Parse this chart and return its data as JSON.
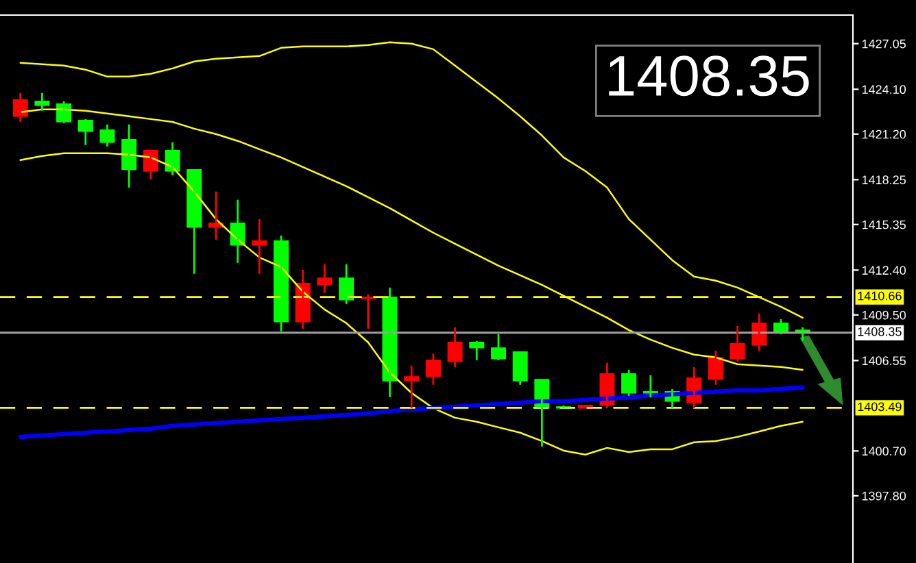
{
  "chart_data": {
    "type": "candlestick",
    "categories": [
      null,
      null,
      null,
      null,
      null,
      null,
      null,
      null,
      null,
      null,
      null,
      null,
      null,
      null,
      null,
      null,
      null,
      null,
      null,
      null,
      null,
      null,
      null,
      null,
      null,
      null,
      null,
      null,
      null,
      null,
      null,
      null,
      null,
      null,
      null,
      null,
      null
    ],
    "ohlc": [
      [
        1422.35,
        1423.86,
        1422.0,
        1423.42
      ],
      [
        1423.33,
        1423.86,
        1422.71,
        1423.06
      ],
      [
        1423.15,
        1423.33,
        1421.91,
        1422.0
      ],
      [
        1422.09,
        1422.17,
        1420.49,
        1421.38
      ],
      [
        1421.47,
        1421.82,
        1420.4,
        1420.67
      ],
      [
        1420.85,
        1421.82,
        1417.74,
        1418.9
      ],
      [
        1418.81,
        1420.14,
        1418.27,
        1420.14
      ],
      [
        1420.14,
        1420.67,
        1418.54,
        1418.81
      ],
      [
        1418.9,
        1418.9,
        1412.16,
        1415.17
      ],
      [
        1415.17,
        1417.48,
        1414.37,
        1415.44
      ],
      [
        1415.44,
        1416.95,
        1412.87,
        1414.02
      ],
      [
        1414.02,
        1415.7,
        1412.16,
        1414.29
      ],
      [
        1414.29,
        1414.64,
        1408.44,
        1409.06
      ],
      [
        1409.06,
        1412.42,
        1408.61,
        1411.54
      ],
      [
        1411.45,
        1412.78,
        1410.92,
        1411.89
      ],
      [
        1411.89,
        1412.78,
        1410.21,
        1410.47
      ],
      [
        1410.56,
        1410.83,
        1408.61,
        1410.65
      ],
      [
        1410.65,
        1411.27,
        1404.18,
        1405.24
      ],
      [
        1405.24,
        1406.22,
        1403.47,
        1405.51
      ],
      [
        1405.51,
        1407.0,
        1404.98,
        1406.57
      ],
      [
        1406.49,
        1408.7,
        1406.13,
        1407.73
      ],
      [
        1407.73,
        1407.82,
        1406.57,
        1407.37
      ],
      [
        1407.37,
        1408.26,
        1406.57,
        1406.66
      ],
      [
        1407.11,
        1407.11,
        1404.98,
        1405.24
      ],
      [
        1405.33,
        1405.33,
        1400.99,
        1403.47
      ],
      [
        1403.56,
        1403.65,
        1403.47,
        1403.47
      ],
      [
        1403.47,
        1403.65,
        1403.47,
        1403.65
      ],
      [
        1403.65,
        1406.4,
        1403.47,
        1405.69
      ],
      [
        1405.69,
        1405.95,
        1404.27,
        1404.45
      ],
      [
        1404.54,
        1405.6,
        1404.18,
        1404.45
      ],
      [
        1404.54,
        1404.71,
        1403.47,
        1403.92
      ],
      [
        1403.83,
        1406.13,
        1403.47,
        1405.42
      ],
      [
        1405.33,
        1407.19,
        1404.98,
        1406.75
      ],
      [
        1406.66,
        1408.79,
        1406.49,
        1407.64
      ],
      [
        1407.55,
        1409.59,
        1407.19,
        1408.97
      ],
      [
        1408.97,
        1409.23,
        1408.26,
        1408.35
      ],
      [
        1408.52,
        1408.7,
        1407.82,
        1408.35
      ]
    ],
    "colors": [
      "#ff0000",
      "#00ff00",
      "#00ff00",
      "#00ff00",
      "#00ff00",
      "#00ff00",
      "#ff0000",
      "#00ff00",
      "#00ff00",
      "#ff0000",
      "#00ff00",
      "#ff0000",
      "#00ff00",
      "#ff0000",
      "#ff0000",
      "#00ff00",
      "#ff0000",
      "#00ff00",
      "#ff0000",
      "#ff0000",
      "#ff0000",
      "#00ff00",
      "#00ff00",
      "#00ff00",
      "#00ff00",
      "#00ff00",
      "#ff0000",
      "#ff0000",
      "#00ff00",
      "#00ff00",
      "#00ff00",
      "#ff0000",
      "#ff0000",
      "#ff0000",
      "#ff0000",
      "#00ff00",
      "#00ff00"
    ],
    "series": [
      {
        "type": "line",
        "color": "#ffff00",
        "values": [
          1425.81,
          1425.72,
          1425.63,
          1425.37,
          1424.92,
          1424.92,
          1425.1,
          1425.45,
          1425.9,
          1426.07,
          1426.16,
          1426.25,
          1426.78,
          1426.87,
          1426.87,
          1426.87,
          1426.96,
          1427.14,
          1427.05,
          1426.69,
          1425.63,
          1424.57,
          1423.5,
          1422.35,
          1421.11,
          1419.69,
          1418.81,
          1417.74,
          1415.7,
          1414.37,
          1413.04,
          1411.98,
          1411.72,
          1411.27,
          1410.65,
          1410.03,
          1409.32
        ]
      },
      {
        "type": "line",
        "color": "#ffff00",
        "values": [
          1422.62,
          1422.8,
          1422.8,
          1422.71,
          1422.53,
          1422.35,
          1422.17,
          1421.99,
          1421.55,
          1421.2,
          1420.76,
          1420.22,
          1419.69,
          1419.07,
          1418.45,
          1417.83,
          1417.12,
          1416.41,
          1415.61,
          1414.82,
          1414.11,
          1413.4,
          1412.69,
          1412.07,
          1411.45,
          1410.74,
          1410.03,
          1409.32,
          1408.52,
          1407.9,
          1407.37,
          1406.93,
          1406.75,
          1406.31,
          1406.22,
          1406.13,
          1405.95
        ]
      },
      {
        "type": "line",
        "color": "#ffff00",
        "values": [
          1419.52,
          1419.78,
          1419.96,
          1419.96,
          1419.96,
          1419.87,
          1419.69,
          1419.07,
          1417.48,
          1415.7,
          1414.37,
          1413.22,
          1412.6,
          1411.0,
          1409.85,
          1408.97,
          1407.73,
          1405.78,
          1404.45,
          1403.47,
          1402.85,
          1402.59,
          1402.23,
          1401.88,
          1401.34,
          1400.72,
          1400.46,
          1400.9,
          1400.63,
          1400.81,
          1400.81,
          1401.26,
          1401.34,
          1401.61,
          1401.96,
          1402.32,
          1402.59
        ]
      },
      {
        "type": "line",
        "color": "#0000ff",
        "values": [
          1401.61,
          1401.7,
          1401.79,
          1401.88,
          1401.96,
          1402.05,
          1402.14,
          1402.32,
          1402.41,
          1402.5,
          1402.59,
          1402.68,
          1402.77,
          1402.85,
          1402.94,
          1403.03,
          1403.12,
          1403.29,
          1403.38,
          1403.47,
          1403.56,
          1403.65,
          1403.74,
          1403.83,
          1403.92,
          1403.92,
          1404.0,
          1404.09,
          1404.18,
          1404.27,
          1404.36,
          1404.45,
          1404.54,
          1404.62,
          1404.62,
          1404.71,
          1404.8
        ]
      }
    ],
    "ylim": [
      1393.45,
      1428.9
    ],
    "yticks": [
      {
        "value": 1427.05,
        "label": "1427.05"
      },
      {
        "value": 1424.1,
        "label": "1424.10"
      },
      {
        "value": 1421.2,
        "label": "1421.20"
      },
      {
        "value": 1418.25,
        "label": "1418.25"
      },
      {
        "value": 1415.35,
        "label": "1415.35"
      },
      {
        "value": 1412.4,
        "label": "1412.40"
      },
      {
        "value": 1409.5,
        "label": "1409.50"
      },
      {
        "value": 1406.55,
        "label": "1406.55"
      },
      {
        "value": 1400.7,
        "label": "1400.70"
      },
      {
        "value": 1397.8,
        "label": "1397.80"
      }
    ],
    "ref_lines": [
      {
        "axis": "y",
        "value": 1410.66,
        "label": "1410.66",
        "color": "#ffff00",
        "line_style": "dashed"
      },
      {
        "axis": "y",
        "value": 1408.35,
        "label": "1408.35",
        "color": "#a0a0a0",
        "line_style": "solid"
      },
      {
        "axis": "y",
        "value": 1403.49,
        "label": "1403.49",
        "color": "#ffff00",
        "line_style": "dashed"
      }
    ],
    "annotations": [
      "1408.35"
    ],
    "grid": false,
    "legend": false
  }
}
